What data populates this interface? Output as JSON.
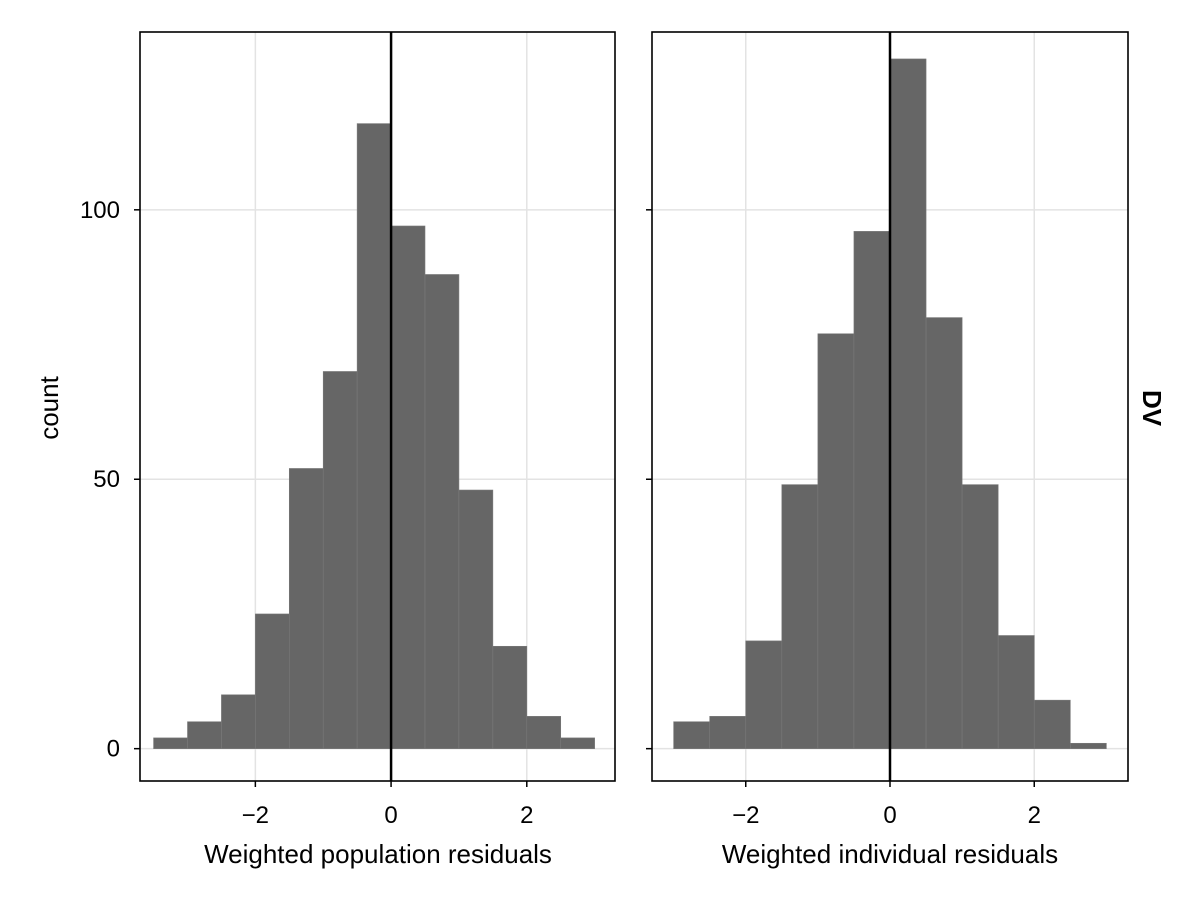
{
  "chart_data": [
    {
      "type": "bar",
      "subtype": "histogram",
      "xlabel": "Weighted population residuals",
      "ylabel": "count",
      "xlim": [
        -3.7,
        3.3
      ],
      "ylim": [
        -6,
        133
      ],
      "xticks": [
        -2,
        0,
        2
      ],
      "xtick_labels": [
        "−2",
        "0",
        "2"
      ],
      "yticks": [
        0,
        50,
        100
      ],
      "ytick_labels": [
        "0",
        "50",
        "100"
      ],
      "grid": true,
      "reference_line_x": 0,
      "bins": [
        {
          "start": -3.5,
          "end": -3.0,
          "count": 2
        },
        {
          "start": -3.0,
          "end": -2.5,
          "count": 5
        },
        {
          "start": -2.5,
          "end": -2.0,
          "count": 10
        },
        {
          "start": -2.0,
          "end": -1.5,
          "count": 25
        },
        {
          "start": -1.5,
          "end": -1.0,
          "count": 52
        },
        {
          "start": -1.0,
          "end": -0.5,
          "count": 70
        },
        {
          "start": -0.5,
          "end": 0.0,
          "count": 116
        },
        {
          "start": 0.0,
          "end": 0.5,
          "count": 97
        },
        {
          "start": 0.5,
          "end": 1.0,
          "count": 88
        },
        {
          "start": 1.0,
          "end": 1.5,
          "count": 48
        },
        {
          "start": 1.5,
          "end": 2.0,
          "count": 19
        },
        {
          "start": 2.0,
          "end": 2.5,
          "count": 6
        },
        {
          "start": 2.5,
          "end": 3.0,
          "count": 2
        }
      ]
    },
    {
      "type": "bar",
      "subtype": "histogram",
      "xlabel": "Weighted individual residuals",
      "ylabel": "",
      "xlim": [
        -3.3,
        3.3
      ],
      "ylim": [
        -6,
        133
      ],
      "xticks": [
        -2,
        0,
        2
      ],
      "xtick_labels": [
        "−2",
        "0",
        "2"
      ],
      "yticks": [
        0,
        50,
        100
      ],
      "ytick_labels": [
        "",
        "",
        ""
      ],
      "grid": true,
      "reference_line_x": 0,
      "facet_label": "DV",
      "bins": [
        {
          "start": -3.0,
          "end": -2.5,
          "count": 5
        },
        {
          "start": -2.5,
          "end": -2.0,
          "count": 6
        },
        {
          "start": -2.0,
          "end": -1.5,
          "count": 20
        },
        {
          "start": -1.5,
          "end": -1.0,
          "count": 49
        },
        {
          "start": -1.0,
          "end": -0.5,
          "count": 77
        },
        {
          "start": -0.5,
          "end": 0.0,
          "count": 96
        },
        {
          "start": 0.0,
          "end": 0.5,
          "count": 128
        },
        {
          "start": 0.5,
          "end": 1.0,
          "count": 80
        },
        {
          "start": 1.0,
          "end": 1.5,
          "count": 49
        },
        {
          "start": 1.5,
          "end": 2.0,
          "count": 21
        },
        {
          "start": 2.0,
          "end": 2.5,
          "count": 9
        },
        {
          "start": 2.5,
          "end": 3.0,
          "count": 1
        }
      ]
    }
  ],
  "colors": {
    "bar": "#666666",
    "bar_edge": "#7a7a7a",
    "grid": "#e3e3e3",
    "frame": "#000000",
    "reference_line": "#000000"
  }
}
